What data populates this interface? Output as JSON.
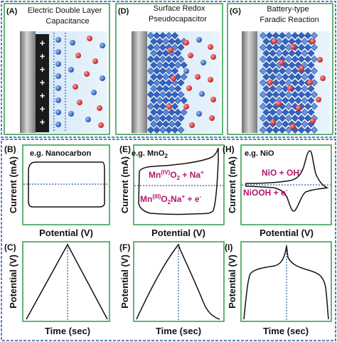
{
  "colors": {
    "panel_border": "#2e9a4b",
    "outer_border": "#2a5aa0",
    "electrode": "#8c8c8c",
    "electrolyte": "#cfe6f7",
    "blue_ion": "#2e5db8",
    "red_ion": "#d8232a",
    "crystal": "#3563c4",
    "annotation": "#b3176f",
    "dotted_line": "#2a5aa0"
  },
  "top_panels": [
    {
      "letter": "(A)",
      "title_line1": "Electric Double Layer",
      "title_line2": "Capacitance"
    },
    {
      "letter": "(D)",
      "title_line1": "Surface Redox",
      "title_line2": "Pseudocapacitor"
    },
    {
      "letter": "(G)",
      "title_line1": "Battery-type",
      "title_line2": "Faradic Reaction"
    }
  ],
  "plus_sign": "+",
  "cv_row": {
    "y_label": "Current (mA)",
    "x_label": "Potential (V)",
    "panels": [
      {
        "letter": "(B)",
        "example": "e.g. Nanocarbon"
      },
      {
        "letter": "(E)",
        "example": "e.g. MnO",
        "example_sub": "2",
        "reaction_top": {
          "a": "Mn",
          "sup1": "(IV)",
          "b": "O",
          "sub1": "2",
          "c": " + Na",
          "sup2": "+"
        },
        "reaction_bottom": {
          "a": "Mn",
          "sup1": "(III)",
          "b": "O",
          "sub1": "2",
          "c": "Na",
          "sup2": "+",
          "d": " + e",
          "sup3": "-"
        }
      },
      {
        "letter": "(H)",
        "example": "e.g. NiO",
        "reaction_top": {
          "a": "NiO + OH",
          "sup1": "-"
        },
        "reaction_bottom": {
          "a": "NiOOH + e",
          "sup1": "-"
        }
      }
    ]
  },
  "gcd_row": {
    "y_label": "Potential (V)",
    "x_label": "Time (sec)",
    "panels": [
      {
        "letter": "(C)"
      },
      {
        "letter": "(F)"
      },
      {
        "letter": "(I)"
      }
    ]
  }
}
